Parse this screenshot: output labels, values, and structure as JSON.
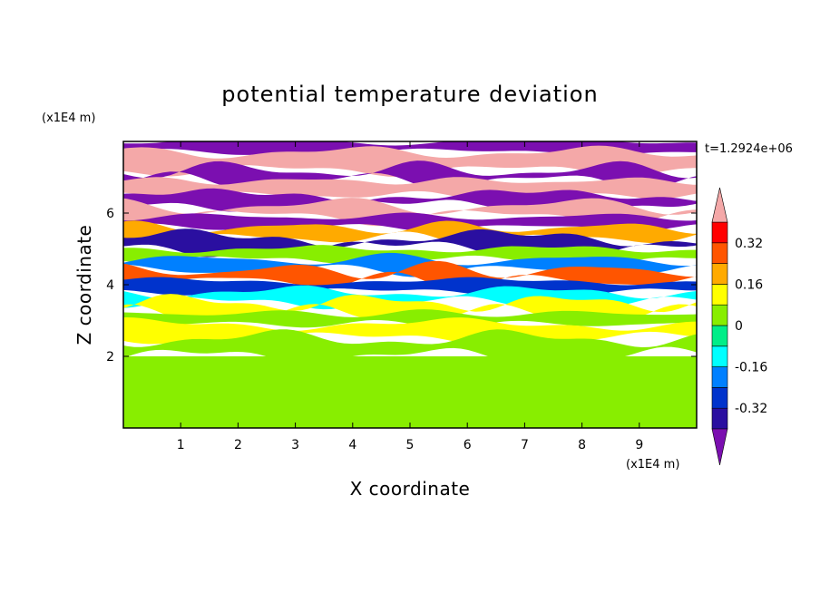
{
  "chart_data": {
    "type": "heatmap",
    "title": "potential temperature deviation",
    "xlabel": "X coordinate",
    "ylabel": "Z coordinate",
    "x_unit": "(x1E4 m)",
    "y_unit": "(x1E4 m)",
    "time_label": "t=1.2924e+06",
    "xlim": [
      0,
      10
    ],
    "ylim": [
      0,
      8
    ],
    "x_ticks": [
      "1",
      "2",
      "3",
      "4",
      "5",
      "6",
      "7",
      "8",
      "9"
    ],
    "y_ticks": [
      "2",
      "4",
      "6"
    ],
    "colorbar": {
      "levels": [
        -0.4,
        -0.32,
        -0.24,
        -0.16,
        -0.08,
        0,
        0.08,
        0.16,
        0.24,
        0.32,
        0.4
      ],
      "tick_labels": [
        "0.32",
        "0.16",
        "0",
        "-0.16",
        "-0.32"
      ],
      "tick_values": [
        0.32,
        0.16,
        0,
        -0.16,
        -0.32
      ],
      "colors": [
        "#7b0fb0",
        "#2a0fa0",
        "#0033cc",
        "#0080ff",
        "#00ffff",
        "#00ee88",
        "#88ee00",
        "#ffff00",
        "#ffaa00",
        "#ff5500",
        "#ff0000",
        "#f4a8a8"
      ],
      "extend": "both"
    },
    "field_bands": [
      {
        "z_range": [
          7.7,
          8.0
        ],
        "value": -0.45
      },
      {
        "z_range": [
          7.2,
          7.7
        ],
        "value": 0.45
      },
      {
        "z_range": [
          6.9,
          7.2
        ],
        "value": -0.45
      },
      {
        "z_range": [
          6.5,
          6.9
        ],
        "value": 0.45
      },
      {
        "z_range": [
          6.2,
          6.5
        ],
        "value": -0.45
      },
      {
        "z_range": [
          5.9,
          6.2
        ],
        "value": 0.45
      },
      {
        "z_range": [
          5.6,
          5.9
        ],
        "value": -0.45
      },
      {
        "z_range": [
          5.3,
          5.6
        ],
        "value": 0.2
      },
      {
        "z_range": [
          5.0,
          5.3
        ],
        "value": -0.36
      },
      {
        "z_range": [
          4.7,
          5.0
        ],
        "value": 0.05
      },
      {
        "z_range": [
          4.4,
          4.7
        ],
        "value": -0.2
      },
      {
        "z_range": [
          4.1,
          4.4
        ],
        "value": 0.3
      },
      {
        "z_range": [
          3.8,
          4.1
        ],
        "value": -0.3
      },
      {
        "z_range": [
          3.5,
          3.8
        ],
        "value": -0.12
      },
      {
        "z_range": [
          3.2,
          3.5
        ],
        "value": 0.12
      },
      {
        "z_range": [
          2.9,
          3.2
        ],
        "value": 0.04
      },
      {
        "z_range": [
          2.5,
          2.9
        ],
        "value": 0.12
      },
      {
        "z_range": [
          2.0,
          2.5
        ],
        "value": 0.05
      },
      {
        "z_range": [
          0.0,
          2.0
        ],
        "value": 0.03
      }
    ],
    "grid": false
  }
}
